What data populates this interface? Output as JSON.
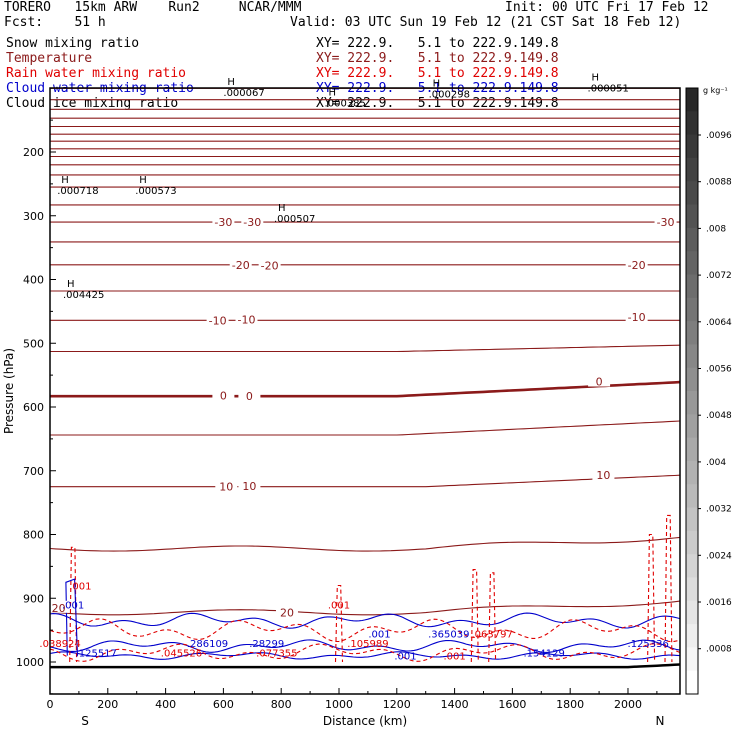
{
  "header": {
    "run_title": "TORERO   15km ARW    Run2     NCAR/MMM",
    "init": "Init: 00 UTC Fri 17 Feb 12",
    "fcst": "Fcst:    51 h",
    "valid": "Valid: 03 UTC Sun 19 Feb 12 (21 CST Sat 18 Feb 12)"
  },
  "legend": [
    {
      "name": "Snow mixing ratio",
      "xy": "XY= 222.9.   5.1 to 222.9.149.8",
      "color": "#000000"
    },
    {
      "name": "Temperature",
      "xy": "XY= 222.9.   5.1 to 222.9.149.8",
      "color": "#8b1a1a"
    },
    {
      "name": "Rain water mixing ratio",
      "xy": "XY= 222.9.   5.1 to 222.9.149.8",
      "color": "#e00000"
    },
    {
      "name": "Cloud water mixing ratio",
      "xy": "XY= 222.9.   5.1 to 222.9.149.8",
      "color": "#0000cc"
    },
    {
      "name": "Cloud ice mixing ratio",
      "xy": "XY= 222.9.   5.1 to 222.9.149.8",
      "color": "#000000"
    }
  ],
  "chart_data": {
    "type": "line",
    "xlabel": "Distance (km)",
    "ylabel": "Pressure (hPa)",
    "x_ticks": [
      0,
      200,
      400,
      600,
      800,
      1000,
      1200,
      1400,
      1600,
      1800,
      2000
    ],
    "y_ticks": [
      200,
      300,
      400,
      500,
      600,
      700,
      800,
      900,
      1000
    ],
    "xlim": [
      0,
      2180
    ],
    "ylim": [
      1050,
      100
    ],
    "endpoints": {
      "left": "S",
      "right": "N"
    },
    "colorbar": {
      "unit": "g kg⁻¹",
      "ticks": [
        ".0096",
        ".0088",
        ".008",
        ".0072",
        ".0064",
        ".0056",
        ".0048",
        ".004",
        ".0032",
        ".0024",
        ".0016",
        ".0008"
      ]
    },
    "temperature_labels": [
      {
        "x": 600,
        "p": 310,
        "text": "-30"
      },
      {
        "x": 700,
        "p": 310,
        "text": "-30"
      },
      {
        "x": 2130,
        "p": 310,
        "text": "-30"
      },
      {
        "x": 660,
        "p": 377,
        "text": "-20"
      },
      {
        "x": 760,
        "p": 378,
        "text": "-20"
      },
      {
        "x": 2030,
        "p": 377,
        "text": "-20"
      },
      {
        "x": 580,
        "p": 464,
        "text": "-10"
      },
      {
        "x": 680,
        "p": 463,
        "text": "-10"
      },
      {
        "x": 2030,
        "p": 459,
        "text": "-10"
      },
      {
        "x": 600,
        "p": 582,
        "text": "0"
      },
      {
        "x": 690,
        "p": 583,
        "text": "0"
      },
      {
        "x": 1900,
        "p": 560,
        "text": "0"
      },
      {
        "x": 610,
        "p": 725,
        "text": "10"
      },
      {
        "x": 690,
        "p": 724,
        "text": "10"
      },
      {
        "x": 1915,
        "p": 707,
        "text": "10"
      },
      {
        "x": 30,
        "p": 915,
        "text": "20"
      },
      {
        "x": 820,
        "p": 922,
        "text": "20"
      }
    ],
    "maxima_labels": [
      {
        "x": 690,
        "p": 104,
        "text": ".000067"
      },
      {
        "x": 1950,
        "p": 97,
        "text": ".000051"
      },
      {
        "x": 1040,
        "p": 121,
        "text": ".000385"
      },
      {
        "x": 1400,
        "p": 107,
        "text": ".000298"
      },
      {
        "x": 115,
        "p": 258,
        "text": ".000718"
      },
      {
        "x": 385,
        "p": 258,
        "text": ".000573"
      },
      {
        "x": 865,
        "p": 302,
        "text": ".000507"
      },
      {
        "x": 135,
        "p": 421,
        "text": ".004425"
      }
    ],
    "rain_labels": [
      {
        "x": 105,
        "p": 880,
        "text": ".001"
      },
      {
        "x": 1000,
        "p": 910,
        "text": ".001"
      },
      {
        "x": 1400,
        "p": 990,
        "text": ".001"
      },
      {
        "x": 35,
        "p": 970,
        "text": ".038924"
      },
      {
        "x": 455,
        "p": 985,
        "text": ".045526"
      },
      {
        "x": 785,
        "p": 985,
        "text": ".077355"
      },
      {
        "x": 1100,
        "p": 970,
        "text": ".105989"
      },
      {
        "x": 1530,
        "p": 955,
        "text": ".063797"
      }
    ],
    "cloud_labels": [
      {
        "x": 80,
        "p": 910,
        "text": ".001"
      },
      {
        "x": 1140,
        "p": 955,
        "text": ".001"
      },
      {
        "x": 1230,
        "p": 990,
        "text": ".001"
      },
      {
        "x": 160,
        "p": 985,
        "text": ".125517"
      },
      {
        "x": 545,
        "p": 970,
        "text": ".286109"
      },
      {
        "x": 750,
        "p": 970,
        "text": ".28299"
      },
      {
        "x": 1380,
        "p": 955,
        "text": ".365039"
      },
      {
        "x": 1710,
        "p": 985,
        "text": ".154129"
      },
      {
        "x": 2070,
        "p": 970,
        "text": ".125336"
      }
    ]
  }
}
